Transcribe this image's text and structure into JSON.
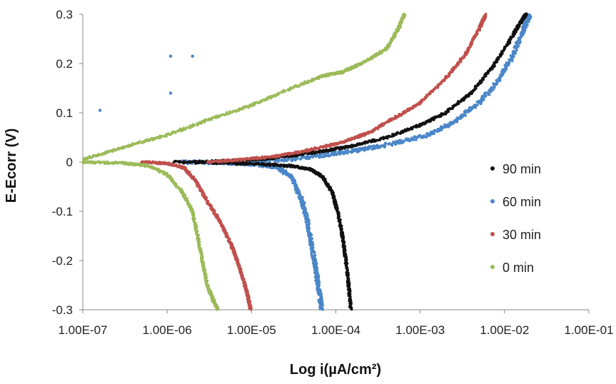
{
  "chart_data": {
    "type": "scatter",
    "xlabel": "Log i(µA/cm²)",
    "ylabel": "E-Ecorr (V)",
    "x_scale": "log",
    "xlim": [
      1e-07,
      0.1
    ],
    "ylim": [
      -0.3,
      0.3
    ],
    "x_ticks": [
      1e-07,
      1e-06,
      1e-05,
      0.0001,
      0.001,
      0.01,
      0.1
    ],
    "x_tick_labels": [
      "1.00E-07",
      "1.00E-06",
      "1.00E-05",
      "1.00E-04",
      "1.00E-03",
      "1.00E-02",
      "1.00E-01"
    ],
    "y_ticks": [
      -0.3,
      -0.2,
      -0.1,
      0,
      0.1,
      0.2,
      0.3
    ],
    "y_tick_labels": [
      "-0.3",
      "-0.2",
      "-0.1",
      "0",
      "0.1",
      "0.2",
      "0.3"
    ],
    "grid": false,
    "legend_position": "right",
    "series": [
      {
        "name": "90 min",
        "color": "#111111",
        "anodic": [
          [
            2e-06,
            0.0
          ],
          [
            6e-06,
            0.003
          ],
          [
            1.5e-05,
            0.007
          ],
          [
            3e-05,
            0.013
          ],
          [
            7e-05,
            0.022
          ],
          [
            0.00015,
            0.032
          ],
          [
            0.0004,
            0.05
          ],
          [
            0.001,
            0.075
          ],
          [
            0.002,
            0.1
          ],
          [
            0.004,
            0.14
          ],
          [
            0.007,
            0.19
          ],
          [
            0.011,
            0.24
          ],
          [
            0.015,
            0.28
          ],
          [
            0.018,
            0.3
          ]
        ],
        "cathodic": [
          [
            1.2e-06,
            0.0
          ],
          [
            5e-06,
            -0.002
          ],
          [
            1.5e-05,
            -0.005
          ],
          [
            3e-05,
            -0.008
          ],
          [
            5e-05,
            -0.015
          ],
          [
            7e-05,
            -0.03
          ],
          [
            9e-05,
            -0.06
          ],
          [
            0.000105,
            -0.1
          ],
          [
            0.00012,
            -0.15
          ],
          [
            0.000132,
            -0.2
          ],
          [
            0.000142,
            -0.25
          ],
          [
            0.00015,
            -0.3
          ]
        ]
      },
      {
        "name": "60 min",
        "color": "#4a86c8",
        "anodic": [
          [
            1e-05,
            0.0
          ],
          [
            3e-05,
            0.006
          ],
          [
            8e-05,
            0.015
          ],
          [
            0.0002,
            0.025
          ],
          [
            0.0005,
            0.038
          ],
          [
            0.0012,
            0.055
          ],
          [
            0.0025,
            0.08
          ],
          [
            0.005,
            0.12
          ],
          [
            0.008,
            0.16
          ],
          [
            0.012,
            0.21
          ],
          [
            0.016,
            0.26
          ],
          [
            0.02,
            0.3
          ]
        ],
        "cathodic": [
          [
            1.5e-06,
            0.0
          ],
          [
            5e-06,
            -0.002
          ],
          [
            1.2e-05,
            -0.005
          ],
          [
            2e-05,
            -0.01
          ],
          [
            3e-05,
            -0.03
          ],
          [
            4e-05,
            -0.08
          ],
          [
            4.6e-05,
            -0.12
          ],
          [
            5.2e-05,
            -0.17
          ],
          [
            5.8e-05,
            -0.22
          ],
          [
            6.3e-05,
            -0.26
          ],
          [
            6.8e-05,
            -0.3
          ]
        ],
        "outliers": [
          [
            1.6e-07,
            0.105
          ],
          [
            1.1e-06,
            0.14
          ],
          [
            1.1e-06,
            0.215
          ],
          [
            2e-06,
            0.215
          ]
        ]
      },
      {
        "name": "30 min",
        "color": "#c0504d",
        "anodic": [
          [
            3e-06,
            0.0
          ],
          [
            8e-06,
            0.005
          ],
          [
            2e-05,
            0.012
          ],
          [
            5e-05,
            0.025
          ],
          [
            0.00012,
            0.04
          ],
          [
            0.00025,
            0.06
          ],
          [
            0.0005,
            0.09
          ],
          [
            0.001,
            0.12
          ],
          [
            0.002,
            0.17
          ],
          [
            0.0035,
            0.22
          ],
          [
            0.005,
            0.27
          ],
          [
            0.006,
            0.3
          ]
        ],
        "cathodic": [
          [
            5e-07,
            0.0
          ],
          [
            1e-06,
            -0.003
          ],
          [
            1.6e-06,
            -0.012
          ],
          [
            2.2e-06,
            -0.04
          ],
          [
            3e-06,
            -0.08
          ],
          [
            4.2e-06,
            -0.12
          ],
          [
            5.5e-06,
            -0.16
          ],
          [
            6.8e-06,
            -0.2
          ],
          [
            8e-06,
            -0.24
          ],
          [
            9e-06,
            -0.27
          ],
          [
            9.8e-06,
            -0.3
          ]
        ]
      },
      {
        "name": "0 min",
        "color": "#9bbb59",
        "anodic": [
          [
            1e-07,
            0.005
          ],
          [
            3e-07,
            0.03
          ],
          [
            1e-06,
            0.055
          ],
          [
            3e-06,
            0.085
          ],
          [
            1e-05,
            0.115
          ],
          [
            3e-05,
            0.15
          ],
          [
            7e-05,
            0.175
          ],
          [
            0.00012,
            0.183
          ],
          [
            0.0002,
            0.2
          ],
          [
            0.0004,
            0.23
          ],
          [
            0.00055,
            0.27
          ],
          [
            0.00065,
            0.3
          ]
        ],
        "cathodic": [
          [
            1e-07,
            0.0
          ],
          [
            3e-07,
            -0.002
          ],
          [
            6e-07,
            -0.008
          ],
          [
            1e-06,
            -0.025
          ],
          [
            1.5e-06,
            -0.06
          ],
          [
            2e-06,
            -0.1
          ],
          [
            2.3e-06,
            -0.15
          ],
          [
            2.6e-06,
            -0.2
          ],
          [
            3e-06,
            -0.25
          ],
          [
            3.5e-06,
            -0.28
          ],
          [
            4e-06,
            -0.3
          ]
        ]
      }
    ]
  }
}
